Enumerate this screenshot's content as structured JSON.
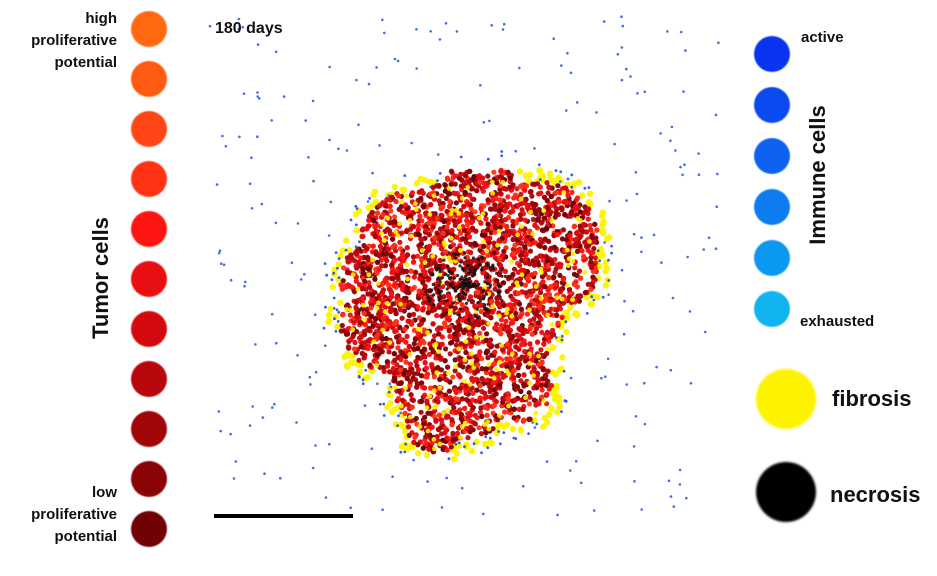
{
  "simulation": {
    "time_label": "180 days"
  },
  "tumor_legend": {
    "title": "Tumor cells",
    "high_label": [
      "high",
      "proliferative",
      "potential"
    ],
    "low_label": [
      "low",
      "proliferative",
      "potential"
    ],
    "colors": [
      "#ff6a10",
      "#ff5a12",
      "#ff4614",
      "#ff3216",
      "#ff1414",
      "#e80f12",
      "#d20a0e",
      "#b8070b",
      "#a00508",
      "#8a0305",
      "#700104"
    ]
  },
  "immune_legend": {
    "title": "Immune cells",
    "active_label": "active",
    "exhausted_label": "exhausted",
    "colors": [
      "#0a34f0",
      "#0c4af0",
      "#0e62f0",
      "#0c7cf0",
      "#0a98f0",
      "#10b4ee"
    ]
  },
  "fibrosis": {
    "label": "fibrosis",
    "color": "#fdf300"
  },
  "necrosis": {
    "label": "necrosis",
    "color": "#000000"
  }
}
